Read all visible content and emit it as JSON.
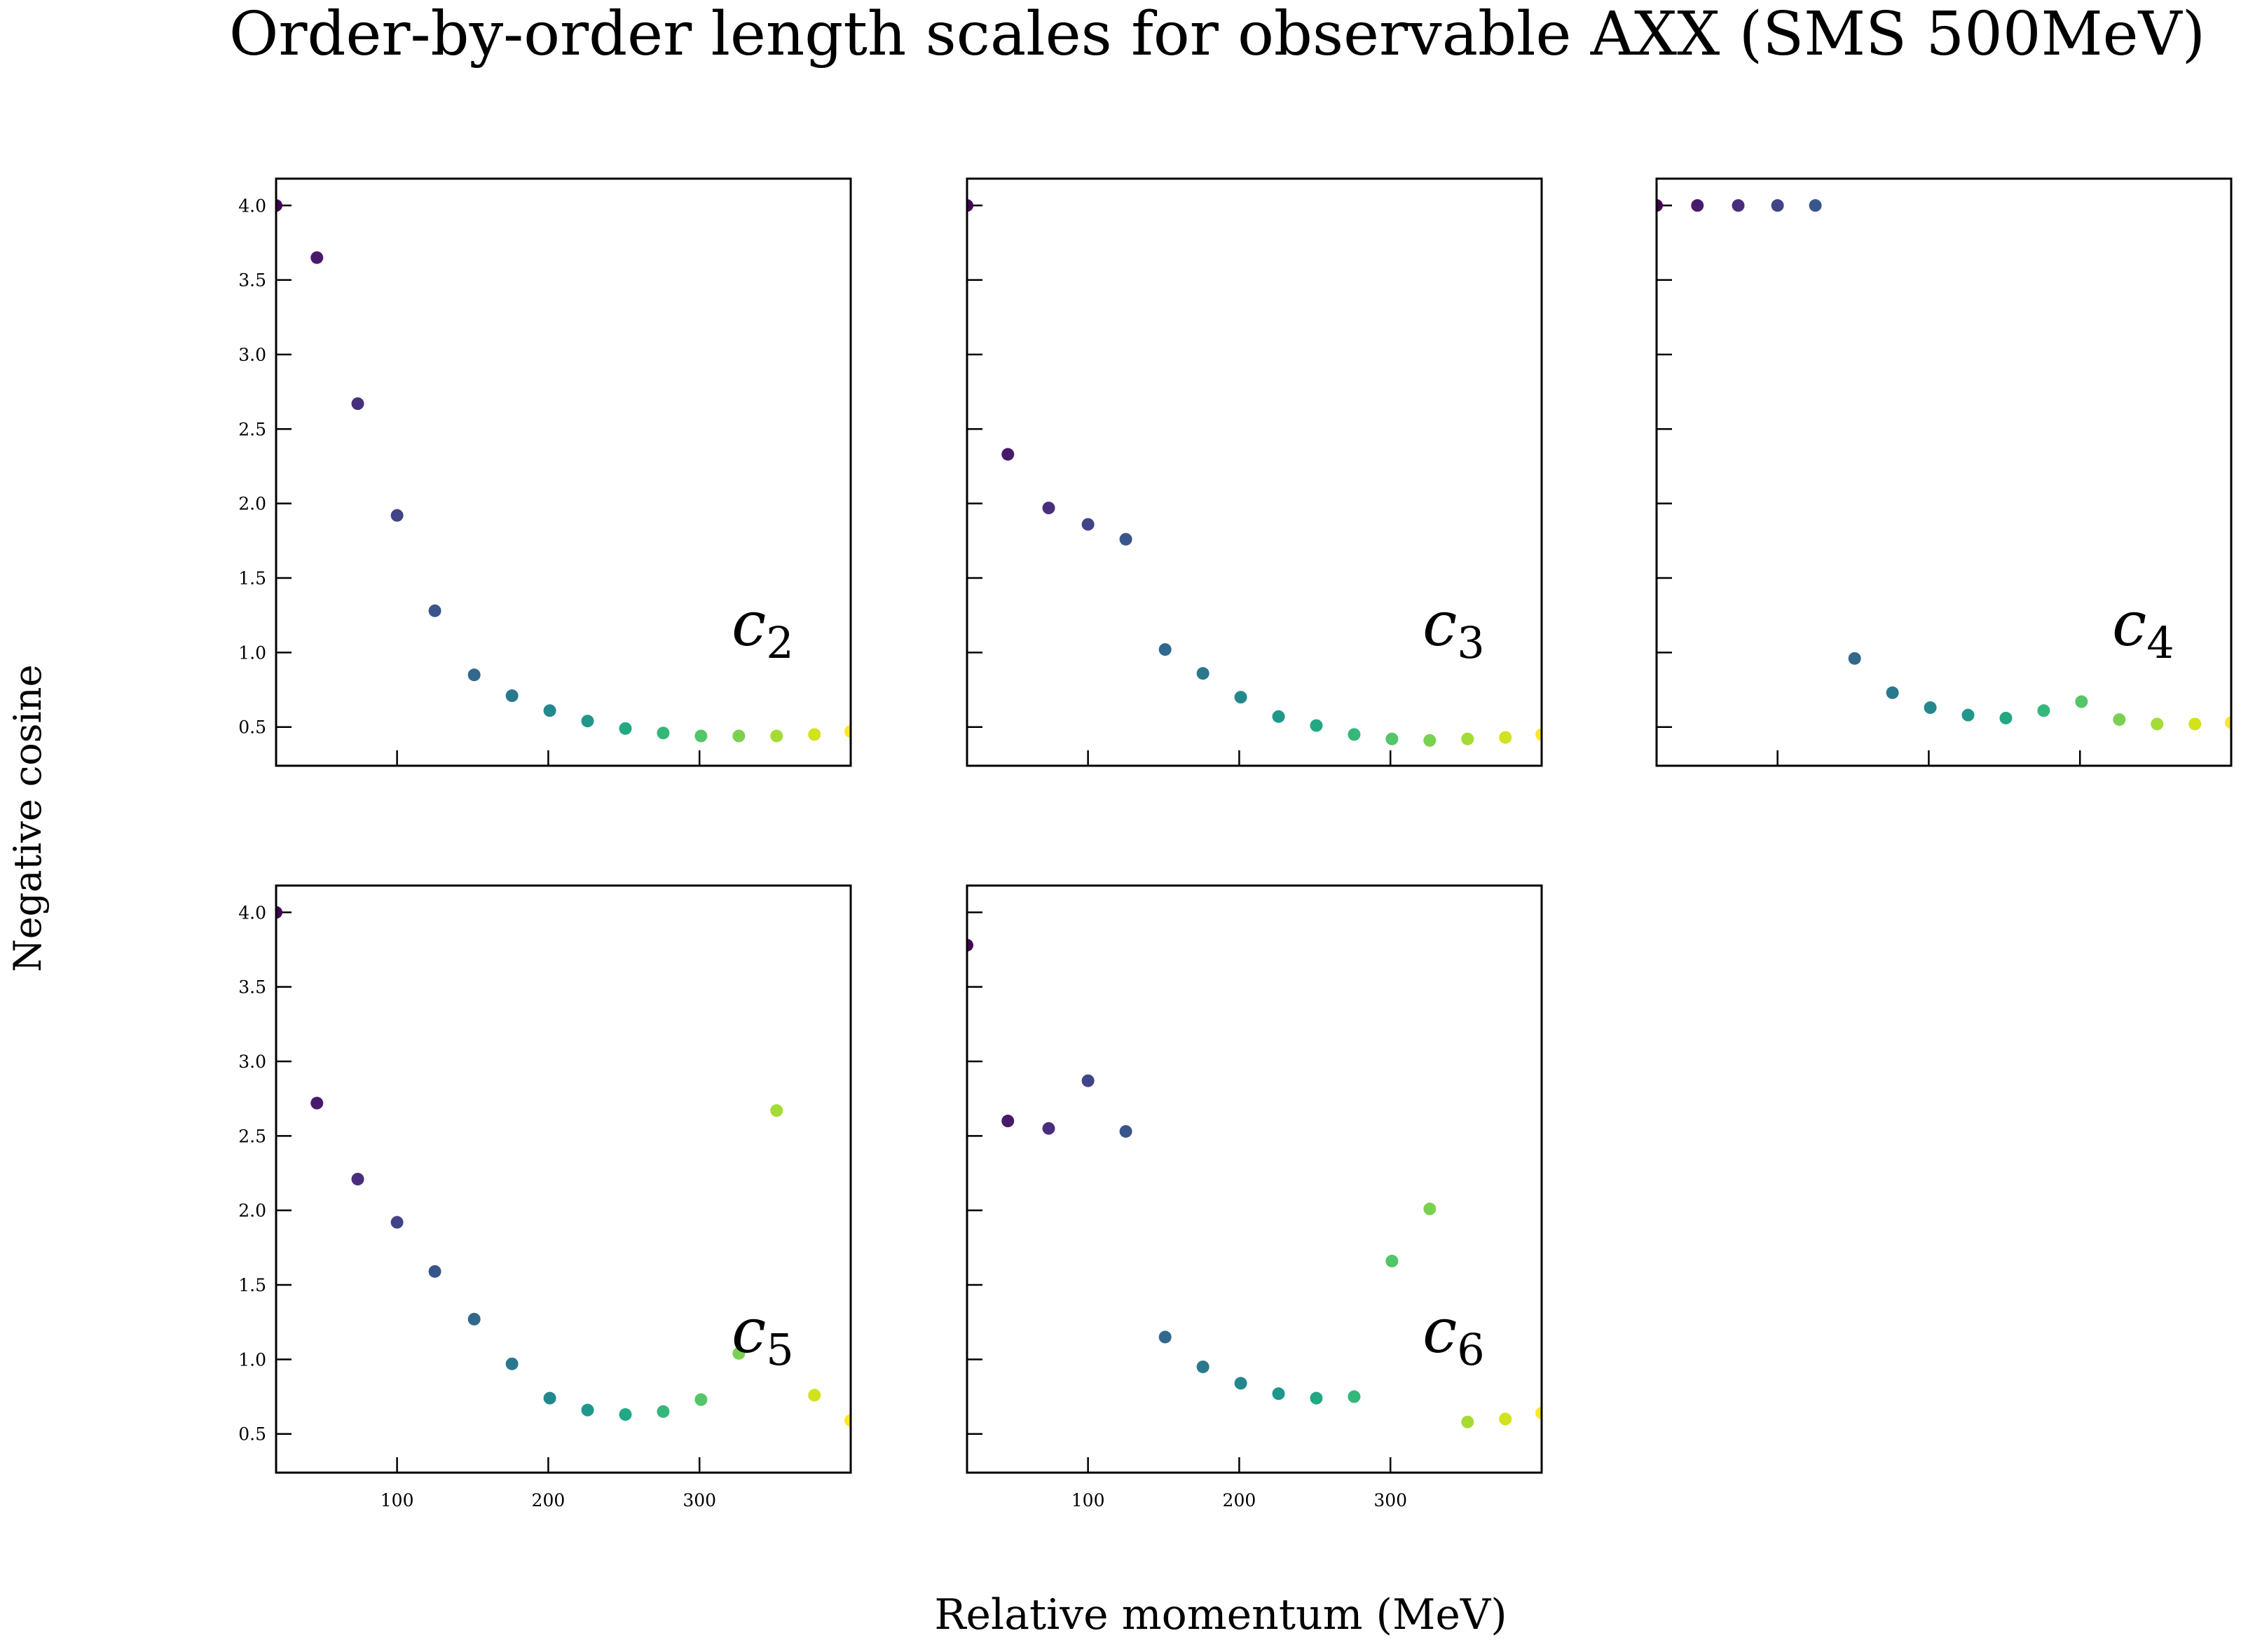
{
  "chart_data": {
    "type": "scatter",
    "title": "Order-by-order length scales for observable AXX (SMS 500MeV)",
    "xlabel": "Relative momentum (MeV)",
    "ylabel": "Negative cosine",
    "xlim": [
      20,
      400
    ],
    "ylim": [
      0.24,
      4.18
    ],
    "xticks": [
      100,
      200,
      300
    ],
    "yticks": [
      0.5,
      1.0,
      1.5,
      2.0,
      2.5,
      3.0,
      3.5,
      4.0
    ],
    "ytick_labels": [
      "0.5",
      "1.0",
      "1.5",
      "2.0",
      "2.5",
      "3.0",
      "3.5",
      "4.0"
    ],
    "grid": false,
    "colormap": "viridis",
    "x": [
      20,
      47,
      74,
      100,
      125,
      151,
      176,
      201,
      226,
      251,
      276,
      301,
      326,
      351,
      376,
      400
    ],
    "panels": [
      {
        "label_base": "c",
        "label_sub": "2",
        "values": [
          4.0,
          3.65,
          2.67,
          1.92,
          1.28,
          0.85,
          0.71,
          0.61,
          0.54,
          0.49,
          0.46,
          0.44,
          0.44,
          0.44,
          0.45,
          0.47
        ]
      },
      {
        "label_base": "c",
        "label_sub": "3",
        "values": [
          4.0,
          2.33,
          1.97,
          1.86,
          1.76,
          1.02,
          0.86,
          0.7,
          0.57,
          0.51,
          0.45,
          0.42,
          0.41,
          0.42,
          0.43,
          0.45
        ]
      },
      {
        "label_base": "c",
        "label_sub": "4",
        "values": [
          4.0,
          4.0,
          4.0,
          4.0,
          4.0,
          0.96,
          0.73,
          0.63,
          0.58,
          0.56,
          0.61,
          0.67,
          0.55,
          0.52,
          0.52,
          0.53
        ]
      },
      {
        "label_base": "c",
        "label_sub": "5",
        "values": [
          4.0,
          2.72,
          2.21,
          1.92,
          1.59,
          1.27,
          0.97,
          0.74,
          0.66,
          0.63,
          0.65,
          0.73,
          1.04,
          2.67,
          0.76,
          0.59
        ]
      },
      {
        "label_base": "c",
        "label_sub": "6",
        "values": [
          3.78,
          2.6,
          2.55,
          2.87,
          2.53,
          1.15,
          0.95,
          0.84,
          0.77,
          0.74,
          0.75,
          1.66,
          2.01,
          0.58,
          0.6,
          0.64
        ]
      }
    ],
    "point_colors": [
      "#440154",
      "#481a6c",
      "#472f7d",
      "#414487",
      "#39568c",
      "#31688e",
      "#2a788e",
      "#23888e",
      "#1f988b",
      "#22a884",
      "#35b779",
      "#54c568",
      "#7ad151",
      "#a5db36",
      "#d2e21b",
      "#fde725"
    ]
  }
}
